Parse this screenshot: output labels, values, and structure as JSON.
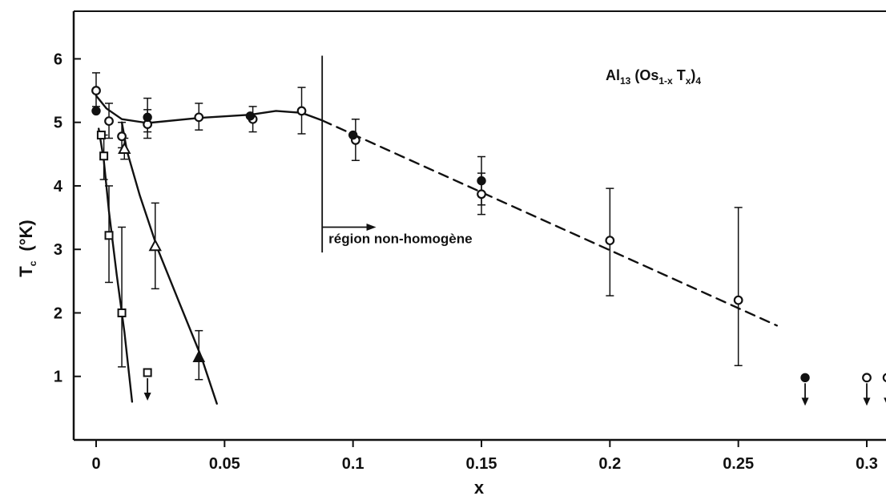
{
  "chart_data": {
    "type": "scatter",
    "title": "",
    "formula": {
      "main": "Al",
      "sub1": "13",
      "mid": " (Os",
      "sub2": "1-x",
      "end": " T",
      "sub3": "x",
      "close": ")",
      "sub4": "4"
    },
    "xlabel": "x",
    "ylabel": {
      "main": "T",
      "sub": "c",
      "unit": "(°K)"
    },
    "xlim": [
      -0.013,
      0.31
    ],
    "ylim": [
      0,
      6.75
    ],
    "xticks": [
      {
        "v": 0,
        "label": "0"
      },
      {
        "v": 0.05,
        "label": "0.05"
      },
      {
        "v": 0.1,
        "label": "0.1"
      },
      {
        "v": 0.15,
        "label": "0.15"
      },
      {
        "v": 0.2,
        "label": "0.2"
      },
      {
        "v": 0.25,
        "label": "0.25"
      },
      {
        "v": 0.3,
        "label": "0.3"
      }
    ],
    "yticks": [
      {
        "v": 1,
        "label": "1"
      },
      {
        "v": 2,
        "label": "2"
      },
      {
        "v": 3,
        "label": "3"
      },
      {
        "v": 4,
        "label": "4"
      },
      {
        "v": 5,
        "label": "5"
      },
      {
        "v": 6,
        "label": "6"
      }
    ],
    "grid": false,
    "legend": "none",
    "annotations": [
      {
        "text": "région non-homogène",
        "boundary_x": 0.088,
        "arrow_to_x": 0.109,
        "arrow_y": 3.35,
        "line_y": [
          2.95,
          6.05
        ],
        "text_y": 3.1
      }
    ],
    "series": [
      {
        "marker": "open-circle",
        "points": [
          {
            "x": 0,
            "y": 5.5,
            "err": [
              5.25,
              5.78
            ]
          },
          {
            "x": 0.005,
            "y": 5.02,
            "err": [
              4.75,
              5.3
            ]
          },
          {
            "x": 0.01,
            "y": 4.78,
            "err": [
              4.6,
              5.0
            ]
          },
          {
            "x": 0.02,
            "y": 4.97,
            "err": [
              4.75,
              5.2
            ]
          },
          {
            "x": 0.04,
            "y": 5.08,
            "err": [
              4.88,
              5.3
            ]
          },
          {
            "x": 0.061,
            "y": 5.05,
            "err": [
              4.85,
              5.25
            ]
          },
          {
            "x": 0.08,
            "y": 5.18,
            "err": [
              4.82,
              5.55
            ]
          },
          {
            "x": 0.101,
            "y": 4.72,
            "err": [
              4.4,
              5.05
            ]
          },
          {
            "x": 0.15,
            "y": 3.87,
            "err": [
              3.55,
              4.2
            ]
          },
          {
            "x": 0.2,
            "y": 3.14,
            "err": [
              2.27,
              3.96
            ]
          },
          {
            "x": 0.25,
            "y": 2.2,
            "err": [
              1.17,
              3.66
            ]
          }
        ],
        "upper_limits": [
          {
            "x": 0.3,
            "y": 0.98
          },
          {
            "x": 0.308,
            "y": 0.98
          }
        ]
      },
      {
        "marker": "filled-circle",
        "points": [
          {
            "x": 0,
            "y": 5.18
          },
          {
            "x": 0.02,
            "y": 5.08,
            "err": [
              4.85,
              5.38
            ]
          },
          {
            "x": 0.06,
            "y": 5.1
          },
          {
            "x": 0.1,
            "y": 4.8
          },
          {
            "x": 0.15,
            "y": 4.08,
            "err": [
              3.7,
              4.46
            ]
          }
        ],
        "upper_limits": [
          {
            "x": 0.276,
            "y": 0.98
          }
        ]
      },
      {
        "marker": "open-square",
        "points": [
          {
            "x": 0.002,
            "y": 4.8
          },
          {
            "x": 0.003,
            "y": 4.47,
            "err": [
              4.1,
              4.8
            ]
          },
          {
            "x": 0.005,
            "y": 3.22,
            "err": [
              2.48,
              4.0
            ]
          },
          {
            "x": 0.01,
            "y": 2.0,
            "err": [
              1.15,
              3.35
            ]
          }
        ],
        "upper_limits": [
          {
            "x": 0.02,
            "y": 1.06
          }
        ]
      },
      {
        "marker": "open-triangle",
        "points": [
          {
            "x": 0.011,
            "y": 4.58,
            "err": [
              4.42,
              4.75
            ]
          },
          {
            "x": 0.023,
            "y": 3.05,
            "err": [
              2.38,
              3.73
            ]
          }
        ]
      },
      {
        "marker": "filled-triangle",
        "points": [
          {
            "x": 0.04,
            "y": 1.3,
            "err": [
              0.95,
              1.72
            ]
          }
        ]
      }
    ],
    "curves": [
      {
        "style": "solid",
        "points": [
          [
            0,
            5.42
          ],
          [
            0.004,
            5.22
          ],
          [
            0.01,
            5.05
          ],
          [
            0.02,
            4.99
          ],
          [
            0.04,
            5.07
          ],
          [
            0.06,
            5.12
          ],
          [
            0.07,
            5.18
          ],
          [
            0.08,
            5.15
          ],
          [
            0.088,
            5.03
          ]
        ]
      },
      {
        "style": "dashed",
        "points": [
          [
            0.088,
            5.03
          ],
          [
            0.265,
            1.8
          ]
        ]
      },
      {
        "style": "solid",
        "points": [
          [
            0.001,
            4.9
          ],
          [
            0.003,
            4.4
          ],
          [
            0.005,
            3.6
          ],
          [
            0.008,
            2.6
          ],
          [
            0.011,
            1.7
          ],
          [
            0.014,
            0.6
          ]
        ]
      },
      {
        "style": "solid",
        "points": [
          [
            0.01,
            5.0
          ],
          [
            0.012,
            4.55
          ],
          [
            0.017,
            3.85
          ],
          [
            0.024,
            3.0
          ],
          [
            0.033,
            2.1
          ],
          [
            0.041,
            1.3
          ],
          [
            0.047,
            0.57
          ]
        ]
      }
    ]
  }
}
